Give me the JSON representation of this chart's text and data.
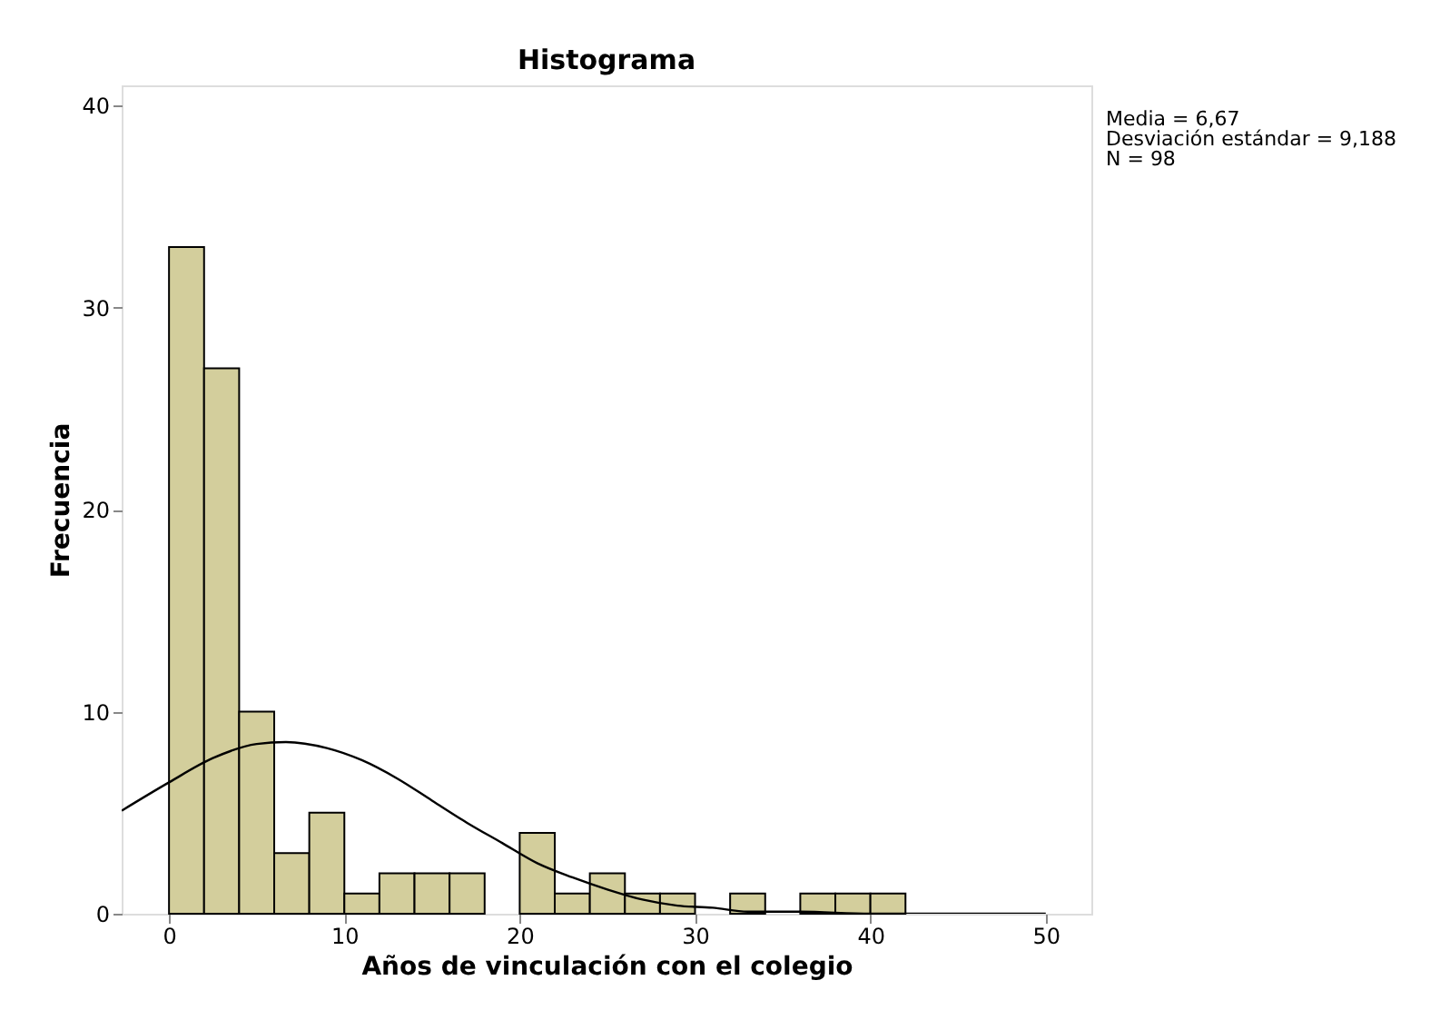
{
  "chart_data": {
    "type": "histogram",
    "title": "Histograma",
    "xlabel": "Años de vinculación con el colegio",
    "ylabel": "Frecuencia",
    "annotations": [
      "Media = 6,67",
      "Desviación estándar = 9,188",
      "N = 98"
    ],
    "xlim": [
      -2.7,
      52.6
    ],
    "ylim": [
      0,
      41
    ],
    "xticks": [
      0,
      10,
      20,
      30,
      40,
      50
    ],
    "yticks": [
      0,
      10,
      20,
      30,
      40
    ],
    "grid": false,
    "series": [
      {
        "color": "#d3ce9c",
        "bins": [
          0,
          2,
          4,
          6,
          8,
          10,
          12,
          14,
          16,
          18,
          20,
          22,
          24,
          26,
          28,
          30,
          32,
          34,
          36,
          38,
          40,
          42
        ],
        "values": [
          33,
          27,
          10,
          3,
          5,
          1,
          2,
          2,
          2,
          0,
          4,
          1,
          2,
          1,
          1,
          0,
          1,
          0,
          1,
          1,
          1
        ]
      },
      {
        "type": "line",
        "color": "#000000",
        "x": [
          -2.7,
          0,
          2.5,
          5,
          6.67,
          9,
          11,
          13,
          15,
          17,
          19,
          21,
          23,
          25,
          27,
          29,
          31,
          33,
          36,
          40,
          45,
          50
        ],
        "values": [
          5.1,
          6.5,
          7.7,
          8.4,
          8.5,
          8.2,
          7.6,
          6.7,
          5.6,
          4.5,
          3.5,
          2.5,
          1.8,
          1.2,
          0.7,
          0.4,
          0.3,
          0.1,
          0.1,
          0,
          0,
          0
        ]
      }
    ]
  }
}
